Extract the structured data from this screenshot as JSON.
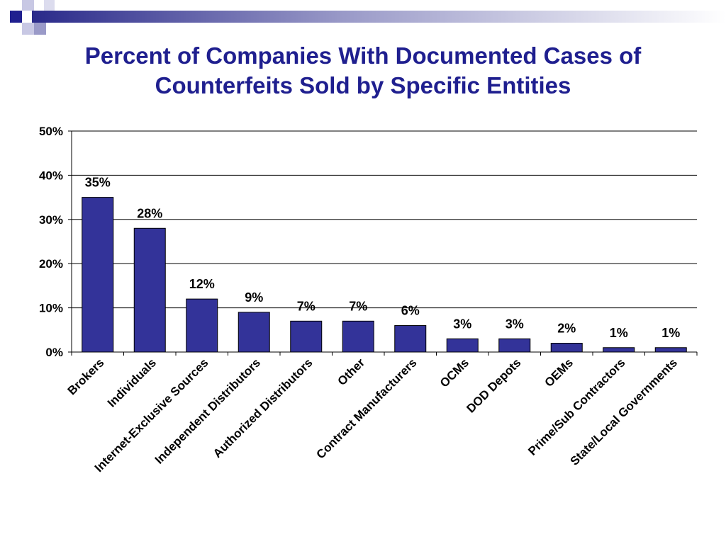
{
  "title_line1": "Percent of Companies With Documented Cases of",
  "title_line2": "Counterfeits Sold by Specific Entities",
  "colors": {
    "bar": "#333399",
    "title": "#1f1f8f",
    "grid": "#000000"
  },
  "chart_data": {
    "type": "bar",
    "title": "Percent of Companies With Documented Cases of Counterfeits Sold by Specific Entities",
    "xlabel": "",
    "ylabel": "",
    "ylim": [
      0,
      50
    ],
    "yticks": [
      0,
      10,
      20,
      30,
      40,
      50
    ],
    "ytick_labels": [
      "0%",
      "10%",
      "20%",
      "30%",
      "40%",
      "50%"
    ],
    "grid": true,
    "legend": "none",
    "categories": [
      "Brokers",
      "Individuals",
      "Internet-Exclusive Sources",
      "Independent Distributors",
      "Authorized Distributors",
      "Other",
      "Contract Manufacturers",
      "OCMs",
      "DOD Depots",
      "OEMs",
      "Prime/Sub Contractors",
      "State/Local Governments"
    ],
    "values": [
      35,
      28,
      12,
      9,
      7,
      7,
      6,
      3,
      3,
      2,
      1,
      1
    ],
    "data_labels": [
      "35%",
      "28%",
      "12%",
      "9%",
      "7%",
      "7%",
      "6%",
      "3%",
      "3%",
      "2%",
      "1%",
      "1%"
    ]
  }
}
